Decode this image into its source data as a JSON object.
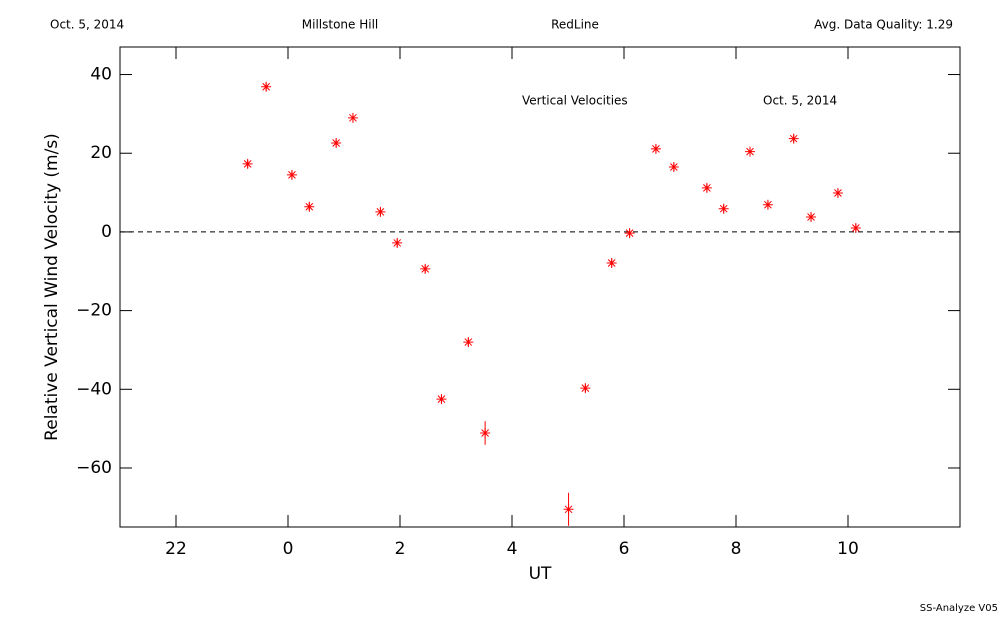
{
  "chart_data": {
    "type": "scatter",
    "header": [
      "Oct. 5, 2014",
      "Millstone Hill",
      "RedLine",
      "Avg. Data Quality: 1.29"
    ],
    "annotations": [
      "Vertical Velocities",
      "Oct. 5, 2014"
    ],
    "xlabel": "UT",
    "ylabel": "Relative Vertical Wind Velocity (m/s)",
    "footer": "SS-Analyze V05",
    "xlim": [
      -3,
      12
    ],
    "ylim": [
      -75,
      47
    ],
    "xticks": [
      {
        "value": -2,
        "label": "22"
      },
      0,
      2,
      4,
      6,
      8,
      10
    ],
    "yticks": [
      {
        "value": -60,
        "label": "−60"
      },
      {
        "value": -40,
        "label": "−40"
      },
      {
        "value": -20,
        "label": "−20"
      },
      0,
      20,
      40
    ],
    "hline": 0,
    "color": "#ff0000",
    "x": [
      -0.72,
      -0.39,
      0.07,
      0.38,
      0.86,
      1.16,
      1.65,
      1.95,
      2.45,
      2.74,
      3.22,
      3.52,
      5.01,
      5.31,
      5.78,
      6.1,
      6.57,
      6.89,
      7.48,
      7.78,
      8.25,
      8.57,
      9.03,
      9.34,
      9.82,
      10.14
    ],
    "values": [
      17.3,
      36.9,
      14.5,
      6.4,
      22.6,
      29.0,
      5.1,
      -2.8,
      -9.4,
      -42.5,
      -28.0,
      -51.1,
      -70.5,
      -39.7,
      -7.9,
      -0.3,
      21.1,
      16.5,
      11.2,
      5.9,
      20.4,
      6.9,
      23.7,
      3.8,
      9.9,
      1.0
    ],
    "errors": [
      1,
      1,
      1,
      1,
      1,
      1,
      1,
      1,
      1,
      1,
      1,
      3,
      4.2,
      1,
      1,
      1,
      1,
      1,
      1,
      1,
      1,
      1,
      1,
      1,
      1,
      1
    ]
  }
}
